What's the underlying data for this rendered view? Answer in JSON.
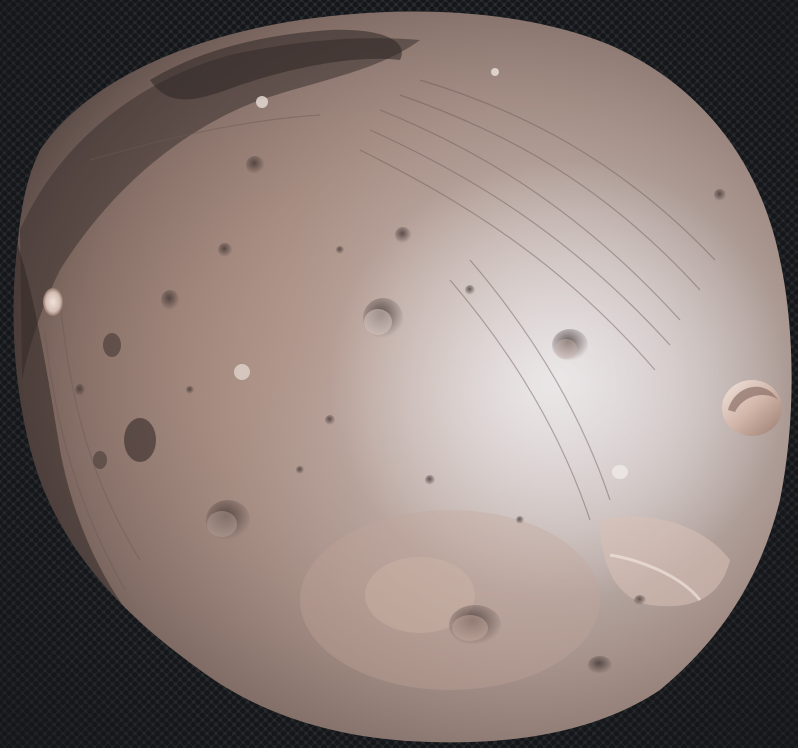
{
  "image": {
    "subject": "phobos-moon",
    "background_pattern": "dark-perforated-metal",
    "colors": {
      "background": "#24272b",
      "background_dots": "#15171a",
      "surface_shadow": "#4a3f3c",
      "surface_mid": "#8e7b73",
      "surface_warm": "#a3867a",
      "surface_bright": "#d7d4d6",
      "crater_rim_highlight": "#e6d6cc"
    }
  }
}
